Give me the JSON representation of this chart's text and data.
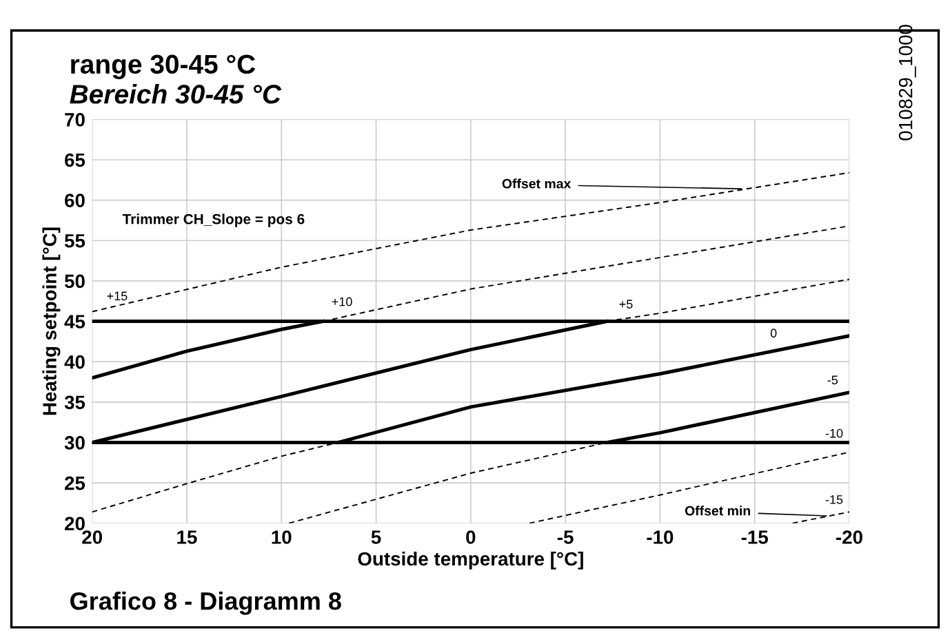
{
  "chart_data": {
    "type": "line",
    "title": "range 30-45 °C",
    "subtitle": "Bereich 30-45 °C",
    "xlabel": "Outside temperature [°C]",
    "ylabel": "Heating setpoint [°C]",
    "xlim": [
      20,
      -20
    ],
    "xticks": [
      20,
      15,
      10,
      5,
      0,
      -5,
      -10,
      -15,
      -20
    ],
    "ylim": [
      20,
      70
    ],
    "yticks": [
      20,
      25,
      30,
      35,
      40,
      45,
      50,
      55,
      60,
      65,
      70
    ],
    "grid": true,
    "legend": false,
    "marker": "none",
    "series": [
      {
        "color": "#000000",
        "line_style": "dashed",
        "x": [
          20,
          10,
          0,
          -10,
          -20
        ],
        "values": [
          46.2,
          51.7,
          56.3,
          59.7,
          63.4
        ]
      },
      {
        "color": "#000000",
        "line_style": "solid",
        "x": [
          20,
          15,
          10,
          7.8
        ],
        "values": [
          38.0,
          41.3,
          44.0,
          45
        ]
      },
      {
        "color": "#000000",
        "line_style": "dashed",
        "x": [
          7.8,
          0,
          -10,
          -20
        ],
        "values": [
          45,
          49.0,
          52.9,
          56.8
        ]
      },
      {
        "color": "#000000",
        "line_style": "solid",
        "x": [
          20,
          10,
          0,
          -7.2
        ],
        "values": [
          30,
          35.7,
          41.5,
          45
        ]
      },
      {
        "color": "#000000",
        "line_style": "dashed",
        "x": [
          -7.2,
          -10,
          -20
        ],
        "values": [
          45,
          46.0,
          50.2
        ]
      },
      {
        "color": "#000000",
        "line_style": "dashed",
        "x": [
          20,
          15,
          10,
          7.0
        ],
        "values": [
          21.4,
          24.9,
          28.3,
          30
        ]
      },
      {
        "color": "#000000",
        "line_style": "solid",
        "x": [
          7.0,
          0,
          -10,
          -20
        ],
        "values": [
          30,
          34.4,
          38.5,
          43.2
        ]
      },
      {
        "color": "#000000",
        "line_style": "dashed",
        "x": [
          9.6,
          0,
          -7.2
        ],
        "values": [
          20,
          26.2,
          30
        ]
      },
      {
        "color": "#000000",
        "line_style": "solid",
        "x": [
          -7.2,
          -10,
          -20
        ],
        "values": [
          30,
          31.2,
          36.2
        ]
      },
      {
        "color": "#000000",
        "line_style": "dashed",
        "x": [
          -3.1,
          -10,
          -20
        ],
        "values": [
          20,
          23.5,
          28.8
        ]
      },
      {
        "color": "#000000",
        "line_style": "dashed",
        "x": [
          -17.0,
          -20
        ],
        "values": [
          20,
          21.4
        ]
      },
      {
        "color": "#000000",
        "line_style": "solid",
        "x": [
          20,
          -20
        ],
        "values": [
          45,
          45
        ]
      },
      {
        "color": "#000000",
        "line_style": "solid",
        "x": [
          20,
          -20
        ],
        "values": [
          30,
          30
        ]
      }
    ],
    "annotations": [
      "+15",
      "+10",
      "+5",
      "0",
      "-5",
      "-10",
      "-15",
      {
        "text": "Offset max",
        "x": -14.5,
        "y": 61.4
      },
      {
        "text": "Offset min",
        "x": -19.0,
        "y": 20.9
      },
      "Trimmer CH_Slope = pos 6",
      "010829_1000",
      "Grafico 8 - Diagramm 8"
    ]
  }
}
